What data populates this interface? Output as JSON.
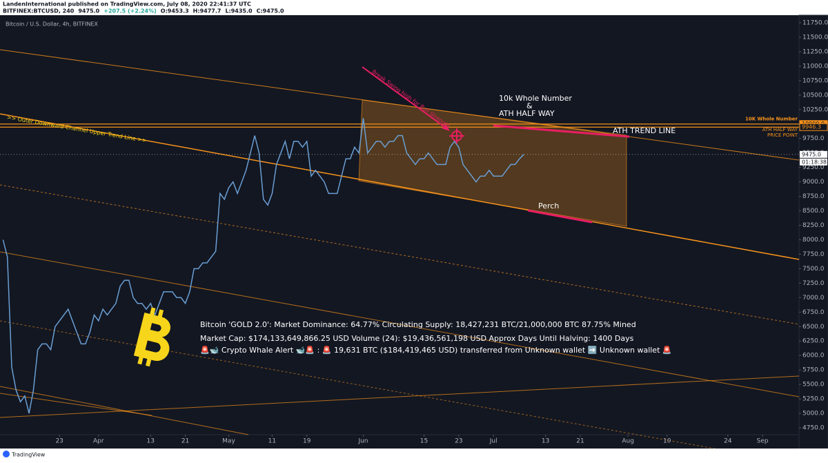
{
  "header": {
    "publisher": "LandenInternational published on TradingView.com, July 08, 2020 22:41:37 UTC",
    "quote": [
      "BITFINEX:BTCUSD, 240",
      "9475.0",
      "+207.5 (+2.24%)",
      "O:9453.3",
      "H:9477.7",
      "L:9435.0",
      "C:9475.0"
    ]
  },
  "chart_data": {
    "type": "line",
    "title": "Bitcoin / U.S. Dollar, 4h, BITFINEX",
    "x": [
      70,
      71,
      72,
      73,
      74,
      75,
      76,
      77,
      78,
      79,
      80,
      81,
      82,
      83,
      84,
      85,
      86,
      87,
      88,
      89,
      90,
      91,
      92,
      93,
      94,
      95,
      96,
      97,
      98,
      99,
      100,
      101,
      102,
      103,
      104,
      105,
      106,
      107,
      108,
      109,
      110,
      111,
      112,
      113,
      114,
      115,
      116,
      117,
      118,
      119,
      120,
      121,
      122,
      123,
      124,
      125,
      126,
      127,
      128,
      129,
      130,
      131,
      132,
      133,
      134,
      135,
      136,
      137,
      138,
      139,
      140,
      141,
      142,
      143,
      144,
      145,
      146,
      147,
      148,
      149,
      150,
      151,
      152,
      153,
      154,
      155,
      156,
      157,
      158,
      159,
      160,
      161,
      162,
      163,
      164,
      165,
      166,
      167,
      168,
      169,
      170,
      171,
      172,
      173,
      174,
      175,
      176,
      177,
      178,
      179,
      180,
      181,
      182,
      183,
      184,
      185,
      186,
      187,
      188,
      189,
      190
    ],
    "series": [
      {
        "name": "BTCUSD",
        "color": "#6a9fd4",
        "values": [
          8000,
          7700,
          5800,
          5400,
          5200,
          5300,
          5000,
          5400,
          6100,
          6200,
          6200,
          6100,
          6500,
          6600,
          6700,
          6800,
          6600,
          6400,
          6200,
          6200,
          6400,
          6700,
          6600,
          6800,
          6700,
          6800,
          6900,
          7200,
          7300,
          7300,
          7000,
          6900,
          6900,
          6800,
          6900,
          6700,
          6900,
          7100,
          7100,
          7100,
          7000,
          7000,
          6900,
          7100,
          7500,
          7500,
          7600,
          7600,
          7700,
          7800,
          8800,
          8700,
          8900,
          9000,
          8800,
          9000,
          9200,
          9500,
          9800,
          9500,
          8700,
          8600,
          8800,
          9300,
          9500,
          9700,
          9400,
          9700,
          9700,
          9600,
          9700,
          9100,
          9200,
          9100,
          9000,
          8800,
          8800,
          8800,
          9100,
          9400,
          9400,
          9600,
          9500,
          10100,
          9500,
          9600,
          9700,
          9700,
          9600,
          9700,
          9700,
          9800,
          9800,
          9500,
          9400,
          9300,
          9400,
          9400,
          9500,
          9400,
          9300,
          9300,
          9300,
          9600,
          9700,
          9600,
          9300,
          9200,
          9100,
          9000,
          9100,
          9100,
          9200,
          9100,
          9100,
          9100,
          9200,
          9300,
          9300,
          9400,
          9475
        ]
      }
    ],
    "xlim": [
      69.3,
      253.4
    ],
    "xticks": [
      {
        "value": 83,
        "label": "23"
      },
      {
        "value": 92,
        "label": "Apr"
      },
      {
        "value": 104,
        "label": "13"
      },
      {
        "value": 112,
        "label": "21"
      },
      {
        "value": 122,
        "label": "May"
      },
      {
        "value": 132,
        "label": "11"
      },
      {
        "value": 140,
        "label": "19"
      },
      {
        "value": 153,
        "label": "Jun"
      },
      {
        "value": 167,
        "label": "15"
      },
      {
        "value": 175,
        "label": "23"
      },
      {
        "value": 183,
        "label": "Jul"
      },
      {
        "value": 195,
        "label": "13"
      },
      {
        "value": 203,
        "label": "21"
      },
      {
        "value": 214,
        "label": "Aug"
      },
      {
        "value": 223,
        "label": "10"
      },
      {
        "value": 237,
        "label": "24"
      },
      {
        "value": 245,
        "label": "Sep"
      }
    ],
    "ylim": [
      4631,
      11881
    ],
    "yticks": [
      {
        "value": 4750,
        "label": "4750.0"
      },
      {
        "value": 5000,
        "label": "5000.0"
      },
      {
        "value": 5250,
        "label": "5250.0"
      },
      {
        "value": 5500,
        "label": "5500.0"
      },
      {
        "value": 5750,
        "label": "5750.0"
      },
      {
        "value": 6000,
        "label": "6000.0"
      },
      {
        "value": 6250,
        "label": "6250.0"
      },
      {
        "value": 6500,
        "label": "6500.0"
      },
      {
        "value": 6750,
        "label": "6750.0"
      },
      {
        "value": 7000,
        "label": "7000.0"
      },
      {
        "value": 7250,
        "label": "7250.0"
      },
      {
        "value": 7500,
        "label": "7500.0"
      },
      {
        "value": 7750,
        "label": "7750.0"
      },
      {
        "value": 8000,
        "label": "8000.0"
      },
      {
        "value": 8250,
        "label": "8250.0"
      },
      {
        "value": 8500,
        "label": "8500.0"
      },
      {
        "value": 8750,
        "label": "8750.0"
      },
      {
        "value": 9000,
        "label": "9000.0"
      },
      {
        "value": 9250,
        "label": "9250.0"
      },
      {
        "value": 9500,
        "label": "9500.0"
      },
      {
        "value": 9750,
        "label": "9750.0"
      },
      {
        "value": 10000,
        "label": "10000.0"
      },
      {
        "value": 10250,
        "label": "10250.0"
      },
      {
        "value": 10500,
        "label": "10500.0"
      },
      {
        "value": 10750,
        "label": "10750.0"
      },
      {
        "value": 11000,
        "label": "11000.0"
      },
      {
        "value": 11250,
        "label": "11250.0"
      },
      {
        "value": 11500,
        "label": "11500.0"
      },
      {
        "value": 11750,
        "label": "11750.0"
      }
    ],
    "grid": false,
    "price_lines": [
      {
        "name": [
          "10K Whole Number"
        ],
        "value": 10000,
        "label": "10000.0",
        "color": "#f7931a"
      },
      {
        "name": [
          "ATH HALF WAY",
          "PRICE POINT"
        ],
        "value": 9946.3,
        "label": "9946.3",
        "color": "#f7931a"
      }
    ],
    "last_price": {
      "value": 9475,
      "label": "9475.0",
      "countdown": "01:18:38"
    },
    "annotations": {
      "channel": ">> Outer Downward Channel Upper Trend Line >>",
      "arrow": "Break Swing high for Bull Strength",
      "ten_k": [
        "10k Whole Number",
        "&",
        "ATH HALF WAY"
      ],
      "trend": "ATH TREND LINE",
      "perch": "Perch",
      "info": [
        "Bitcoin 'GOLD 2.0': Market Dominance: 64.77%  Circulating Supply: 18,427,231 BTC/21,000,000 BTC 87.75% Mined",
        "Market Cap: $174,133,649,866.25 USD Volume (24): $19,436,561,198 USD Approx Days Until Halving: 1400 Days",
        "🚨🐋 Crypto Whale Alert 🐋🚨 :  🚨 19,631 BTC ($184,419,465 USD) transferred from Unknown wallet ➡️ Unknown wallet 🚨"
      ]
    }
  },
  "footer": {
    "brand": "TradingView"
  }
}
